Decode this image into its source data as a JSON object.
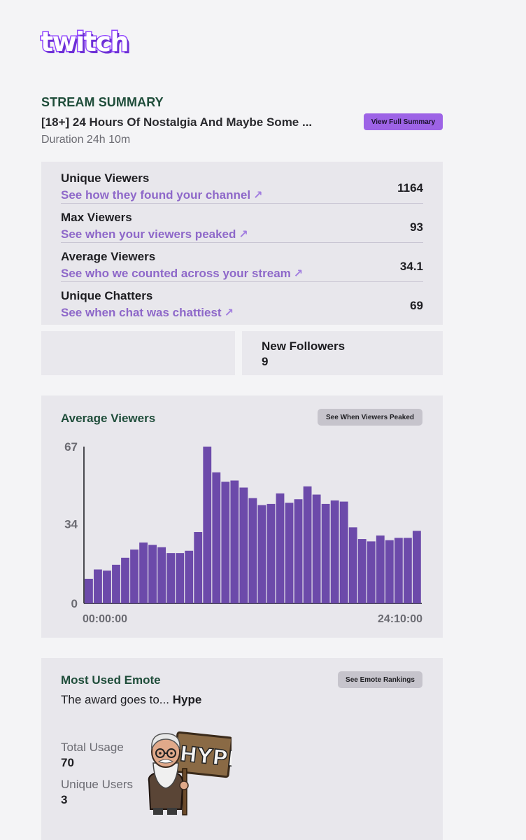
{
  "brand": {
    "logo_text": "twitch",
    "accent": "#9146ff"
  },
  "summary": {
    "heading": "STREAM SUMMARY",
    "stream_title": "[18+] 24 Hours Of Nostalgia And Maybe Some ...",
    "duration": "Duration 24h 10m",
    "full_summary_button": "View Full Summary"
  },
  "stats": [
    {
      "label": "Unique Viewers",
      "link": "See how they found your channel",
      "value": "1164"
    },
    {
      "label": "Max Viewers",
      "link": "See when your viewers peaked",
      "value": "93"
    },
    {
      "label": "Average Viewers",
      "link": "See who we counted across your stream",
      "value": "34.1"
    },
    {
      "label": "Unique Chatters",
      "link": "See when chat was chattiest",
      "value": "69"
    }
  ],
  "followers": {
    "label": "New Followers",
    "value": "9"
  },
  "avg_chart": {
    "title": "Average Viewers",
    "button": "See When Viewers Peaked",
    "bar_color": "#6c4aaa"
  },
  "chart_data": {
    "type": "bar",
    "title": "Average Viewers",
    "ylim": [
      0,
      67
    ],
    "y_ticks": [
      "67",
      "34",
      "0"
    ],
    "x_tick_labels": [
      "00:00:00",
      "24:10:00"
    ],
    "values": [
      10.5,
      14.5,
      14,
      16.5,
      19.5,
      23,
      26,
      25,
      24,
      21.5,
      21.5,
      22.5,
      30.5,
      67,
      56,
      52,
      52.5,
      49.5,
      45,
      42,
      42.5,
      47,
      43,
      44.5,
      50,
      46.5,
      42.5,
      44,
      43.5,
      32.5,
      27.5,
      26.5,
      29,
      27,
      28,
      28,
      31
    ]
  },
  "emote": {
    "title": "Most Used Emote",
    "button": "See Emote Rankings",
    "award_prefix": "The award goes to...",
    "award_name": "Hype",
    "sign_text": "HYPE",
    "total_usage_label": "Total Usage",
    "total_usage_value": "70",
    "unique_users_label": "Unique Users",
    "unique_users_value": "3"
  }
}
